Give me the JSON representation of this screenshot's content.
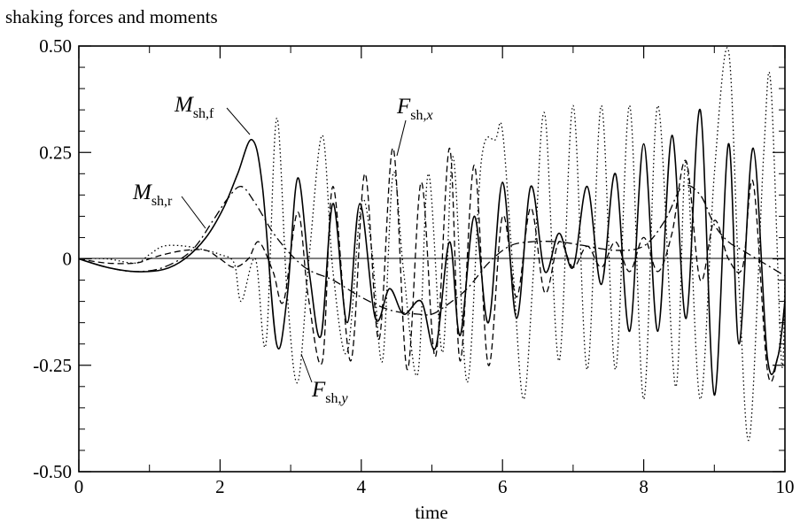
{
  "chart_data": {
    "type": "line",
    "title": "shaking forces and moments",
    "xlabel": "time",
    "ylabel": "",
    "xlim": [
      0,
      10
    ],
    "ylim": [
      -0.5,
      0.5
    ],
    "x_ticks": [
      "0",
      "2",
      "4",
      "6",
      "8",
      "10"
    ],
    "y_ticks": [
      "0.50",
      "0.25",
      "0",
      "-0.25",
      "-0.50"
    ],
    "grid": false,
    "series": [
      {
        "name": "M_sh,f",
        "label_main": "M",
        "label_sub": "sh,f",
        "label_sub_italic": "",
        "style": "solid",
        "x": [
          0,
          0.4,
          0.8,
          1.2,
          1.5,
          1.8,
          2.05,
          2.25,
          2.45,
          2.6,
          2.8,
          2.95,
          3.1,
          3.27,
          3.43,
          3.6,
          3.8,
          3.98,
          4.2,
          4.4,
          4.6,
          4.85,
          5.05,
          5.25,
          5.4,
          5.6,
          5.8,
          6.0,
          6.2,
          6.4,
          6.6,
          6.8,
          7.0,
          7.2,
          7.4,
          7.6,
          7.8,
          8.0,
          8.2,
          8.4,
          8.6,
          8.8,
          9.0,
          9.2,
          9.35,
          9.55,
          9.75,
          9.9,
          10.0
        ],
        "y": [
          0,
          -0.02,
          -0.03,
          -0.025,
          0,
          0.05,
          0.12,
          0.2,
          0.28,
          0.17,
          -0.2,
          -0.09,
          0.19,
          -0.04,
          -0.18,
          0.13,
          -0.15,
          0.13,
          -0.14,
          -0.07,
          -0.13,
          -0.1,
          -0.21,
          0.04,
          -0.18,
          0.1,
          -0.15,
          0.18,
          -0.14,
          0.17,
          -0.03,
          0.06,
          -0.02,
          0.17,
          -0.06,
          0.2,
          -0.17,
          0.27,
          -0.17,
          0.29,
          -0.14,
          0.35,
          -0.32,
          0.27,
          -0.2,
          0.26,
          -0.23,
          -0.23,
          -0.1
        ]
      },
      {
        "name": "M_sh,r",
        "label_main": "M",
        "label_sub": "sh,r",
        "label_sub_italic": "",
        "style": "dashdot",
        "x": [
          0,
          0.4,
          0.8,
          1.2,
          1.6,
          1.9,
          2.1,
          2.3,
          2.5,
          2.8,
          3.2,
          3.6,
          4.0,
          4.4,
          4.8,
          5.0,
          5.2,
          5.5,
          5.8,
          6.1,
          6.4,
          6.8,
          7.2,
          7.6,
          8.0,
          8.3,
          8.55,
          8.8,
          9.0,
          9.2,
          9.4,
          9.6,
          9.8,
          10.0
        ],
        "y": [
          0,
          -0.02,
          -0.03,
          -0.02,
          0.02,
          0.09,
          0.14,
          0.17,
          0.13,
          0.05,
          -0.02,
          -0.05,
          -0.09,
          -0.12,
          -0.13,
          -0.13,
          -0.11,
          -0.07,
          -0.01,
          0.03,
          0.04,
          0.04,
          0.03,
          0.02,
          0.03,
          0.09,
          0.17,
          0.15,
          0.08,
          0.04,
          0.02,
          0.0,
          -0.02,
          -0.04
        ]
      },
      {
        "name": "F_sh,x",
        "label_main": "F",
        "label_sub": "sh,",
        "label_sub_italic": "x",
        "style": "dashed",
        "x": [
          0,
          0.4,
          0.8,
          1.0,
          1.2,
          1.5,
          1.8,
          2.0,
          2.2,
          2.4,
          2.55,
          2.75,
          2.9,
          3.1,
          3.25,
          3.45,
          3.6,
          3.85,
          4.05,
          4.25,
          4.45,
          4.65,
          4.85,
          5.05,
          5.25,
          5.4,
          5.6,
          5.8,
          6.0,
          6.2,
          6.4,
          6.6,
          6.8,
          7.0,
          7.2,
          7.4,
          7.6,
          7.8,
          8.0,
          8.2,
          8.4,
          8.6,
          8.8,
          9.0,
          9.2,
          9.4,
          9.55,
          9.75,
          9.9,
          10.0
        ],
        "y": [
          0,
          -0.01,
          -0.01,
          0.0,
          0.01,
          0.02,
          0.02,
          0.0,
          -0.02,
          0.0,
          0.04,
          -0.03,
          -0.1,
          0.11,
          -0.09,
          -0.24,
          0.17,
          -0.24,
          0.2,
          -0.19,
          0.26,
          -0.26,
          0.18,
          -0.23,
          0.26,
          -0.24,
          0.22,
          -0.25,
          0.1,
          -0.09,
          0.12,
          -0.08,
          0.04,
          -0.02,
          0.03,
          -0.02,
          0.04,
          -0.03,
          0.05,
          -0.03,
          0.06,
          0.23,
          -0.05,
          0.09,
          0.0,
          -0.02,
          0.18,
          -0.26,
          -0.23,
          -0.1
        ]
      },
      {
        "name": "F_sh,y",
        "label_main": "F",
        "label_sub": "sh,",
        "label_sub_italic": "y",
        "style": "dotted",
        "x": [
          0,
          0.4,
          0.8,
          1.0,
          1.2,
          1.5,
          1.8,
          2.0,
          2.2,
          2.3,
          2.5,
          2.65,
          2.8,
          2.95,
          3.1,
          3.27,
          3.45,
          3.6,
          3.8,
          4.0,
          4.15,
          4.3,
          4.45,
          4.6,
          4.8,
          4.95,
          5.15,
          5.3,
          5.5,
          5.7,
          5.9,
          6.0,
          6.15,
          6.3,
          6.45,
          6.6,
          6.8,
          7.0,
          7.2,
          7.4,
          7.6,
          7.8,
          8.0,
          8.2,
          8.45,
          8.6,
          8.8,
          9.0,
          9.2,
          9.35,
          9.5,
          9.7,
          9.8,
          9.95,
          10.0
        ],
        "y": [
          0,
          0.0,
          -0.01,
          0.01,
          0.03,
          0.03,
          0.02,
          0.01,
          -0.01,
          -0.1,
          0.0,
          -0.2,
          0.33,
          -0.08,
          -0.29,
          0.02,
          0.29,
          -0.03,
          -0.22,
          0.13,
          0.02,
          -0.24,
          0.2,
          -0.03,
          -0.27,
          0.2,
          -0.22,
          0.24,
          -0.29,
          0.23,
          0.28,
          0.3,
          -0.03,
          -0.33,
          0.0,
          0.34,
          -0.24,
          0.36,
          -0.26,
          0.36,
          -0.26,
          0.36,
          -0.33,
          0.36,
          -0.3,
          0.23,
          -0.33,
          0.2,
          0.49,
          -0.06,
          -0.42,
          0.25,
          0.41,
          -0.24,
          -0.05
        ]
      }
    ]
  }
}
